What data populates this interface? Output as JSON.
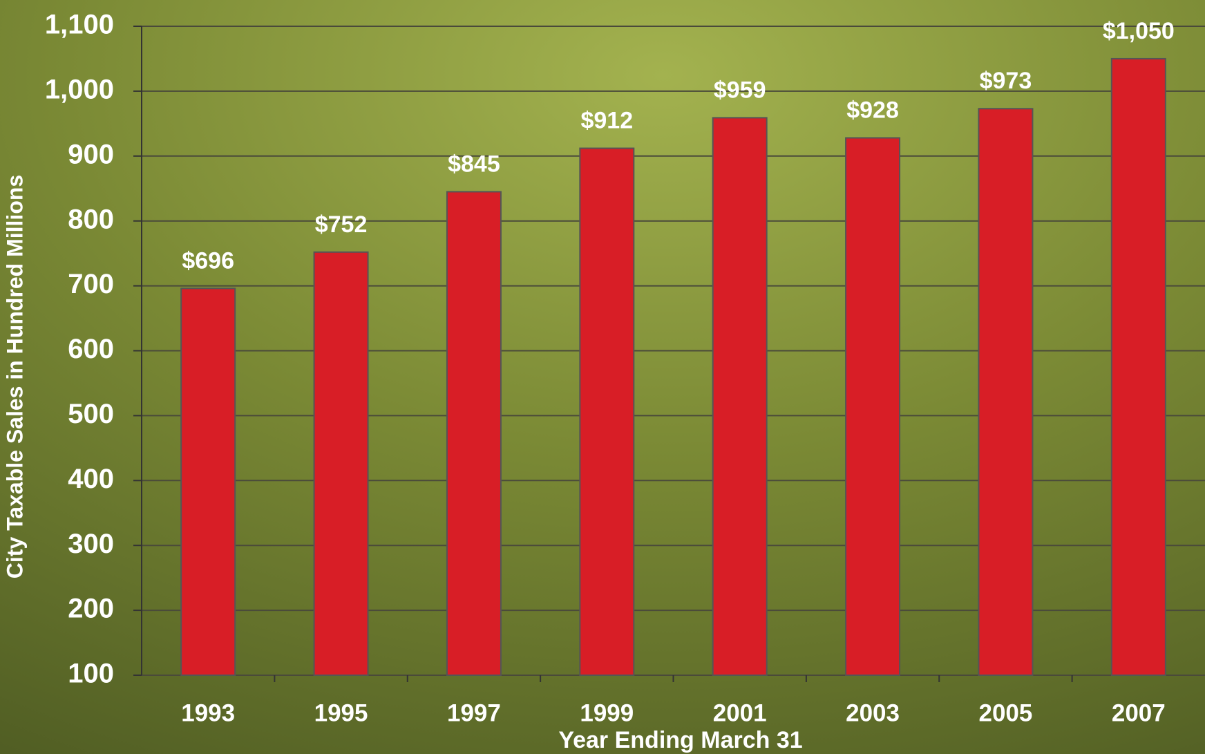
{
  "chart_data": {
    "type": "bar",
    "y_label": "City Taxable Sales in Hundred Millions",
    "x_label": "Year Ending March 31",
    "categories": [
      "1993",
      "1995",
      "1997",
      "1999",
      "2001",
      "2003",
      "2005",
      "2007"
    ],
    "values": [
      696,
      752,
      845,
      912,
      959,
      928,
      973,
      1050
    ],
    "value_labels": [
      "$696",
      "$752",
      "$845",
      "$912",
      "$959",
      "$928",
      "$973",
      "$1,050"
    ],
    "color": "#d81e26",
    "ylim": [
      100,
      1100
    ],
    "yticks": [
      100,
      200,
      300,
      400,
      500,
      600,
      700,
      800,
      900,
      {
        "value": 1000,
        "label": "1,000"
      },
      {
        "value": 1100,
        "label": "1,100"
      }
    ],
    "grid": true
  }
}
